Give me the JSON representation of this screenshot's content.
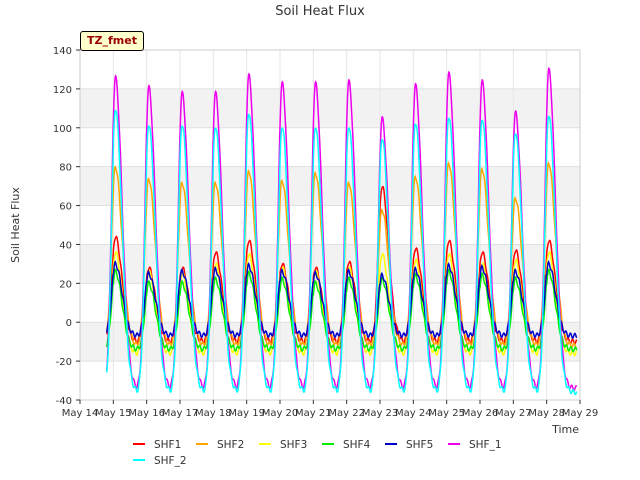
{
  "chart_data": {
    "type": "line",
    "title": "Soil Heat Flux",
    "xlabel": "Time",
    "ylabel": "Soil Heat Flux",
    "ylim": [
      -40,
      140
    ],
    "xlim": [
      14,
      29
    ],
    "yticks": [
      -40,
      -20,
      0,
      20,
      40,
      60,
      80,
      100,
      120,
      140
    ],
    "xticks": [
      14,
      15,
      16,
      17,
      18,
      19,
      20,
      21,
      22,
      23,
      24,
      25,
      26,
      27,
      28,
      29
    ],
    "xtick_labels": [
      "May 14",
      "May 15",
      "May 16",
      "May 17",
      "May 18",
      "May 19",
      "May 20",
      "May 21",
      "May 22",
      "May 23",
      "May 24",
      "May 25",
      "May 26",
      "May 27",
      "May 28",
      "May 29"
    ],
    "x_start": 14.8,
    "x_end": 28.9,
    "peak_days": [
      15.06,
      16.06,
      17.06,
      18.06,
      19.06,
      20.06,
      21.06,
      22.06,
      23.06,
      24.06,
      25.06,
      26.06,
      27.06,
      28.06
    ],
    "annotation": "TZ_fmet",
    "grid": "horizontal bands",
    "series": [
      {
        "name": "SHF1",
        "color": "#ff0000",
        "min": -10,
        "peaks": [
          44,
          28,
          28,
          36,
          42,
          30,
          28,
          31,
          70,
          38,
          42,
          36,
          37,
          42
        ]
      },
      {
        "name": "SHF2",
        "color": "#ffa500",
        "min": -12,
        "peaks": [
          80,
          74,
          72,
          72,
          78,
          73,
          77,
          72,
          58,
          75,
          82,
          79,
          64,
          82
        ]
      },
      {
        "name": "SHF3",
        "color": "#ffff00",
        "min": -16,
        "peaks": [
          36,
          26,
          25,
          30,
          35,
          28,
          26,
          28,
          35,
          32,
          35,
          30,
          32,
          36
        ]
      },
      {
        "name": "SHF4",
        "color": "#00ee00",
        "min": -14,
        "peaks": [
          26,
          20,
          20,
          22,
          25,
          22,
          20,
          22,
          22,
          24,
          26,
          24,
          22,
          26
        ]
      },
      {
        "name": "SHF5",
        "color": "#0000cc",
        "min": -7,
        "peaks": [
          30,
          25,
          26,
          27,
          29,
          26,
          25,
          26,
          24,
          27,
          29,
          28,
          26,
          30
        ]
      },
      {
        "name": "SHF_1",
        "color": "#ee00ee",
        "min": -34,
        "peaks": [
          126,
          121,
          118,
          118,
          127,
          123,
          123,
          124,
          105,
          122,
          128,
          124,
          108,
          130
        ]
      },
      {
        "name": "SHF_2",
        "color": "#00ffff",
        "min": -36,
        "peaks": [
          110,
          102,
          102,
          101,
          108,
          101,
          101,
          101,
          95,
          103,
          106,
          105,
          98,
          107
        ]
      }
    ]
  }
}
